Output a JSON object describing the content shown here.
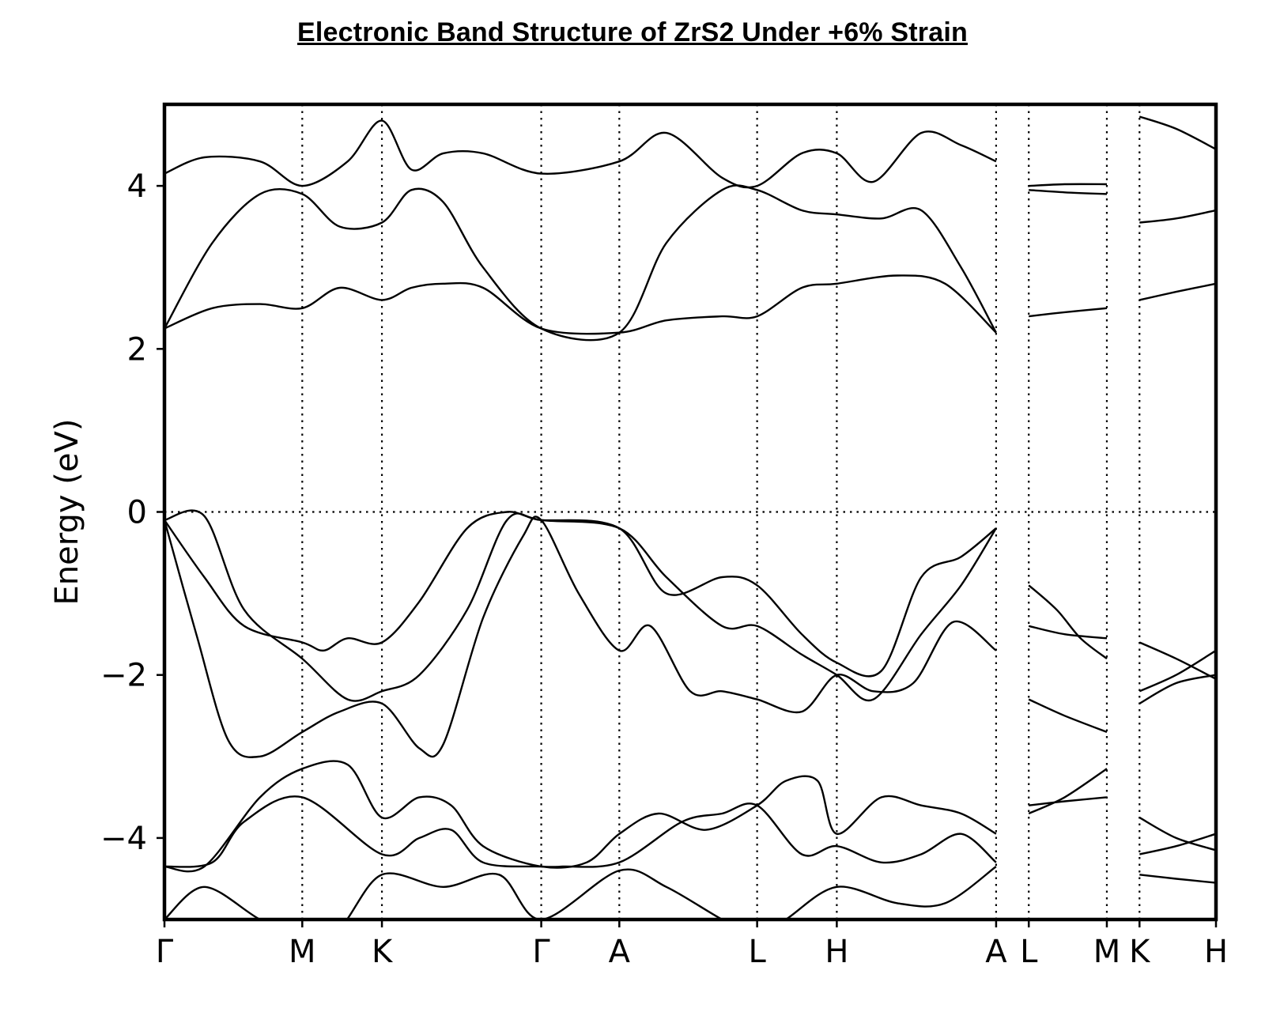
{
  "chart_data": {
    "type": "line",
    "title": "Electronic Band Structure of ZrS2 Under +6% Strain",
    "xlabel": "",
    "ylabel": "Energy (eV)",
    "ylim": [
      -5,
      5
    ],
    "yticks": [
      4,
      2,
      0,
      -2,
      -4
    ],
    "ytick_labels": [
      "4",
      "2",
      "0",
      "−2",
      "−4"
    ],
    "fermi_level": 0,
    "kpath": {
      "labels": [
        "Γ",
        "M",
        "K",
        "Γ",
        "A",
        "L",
        "H",
        "A",
        "L",
        "M",
        "K",
        "H"
      ],
      "positions": [
        0,
        1.73,
        2.73,
        4.73,
        5.71,
        7.44,
        8.44,
        10.44,
        10.85,
        11.83,
        12.24,
        13.2
      ],
      "xlim": [
        0,
        13.2
      ]
    },
    "segments": [
      {
        "name": "Γ-M-K-Γ-A-L-H-A",
        "bands": [
          {
            "x": [
              0,
              0.5,
              1.2,
              1.73,
              2.2,
              2.73,
              3.5,
              4.2,
              4.73,
              5.71,
              6.3,
              7.0,
              7.44,
              7.8,
              8.44,
              9.2,
              9.8,
              10.44
            ],
            "y": [
              -5.0,
              -4.6,
              -5.0,
              -5.2,
              -5.1,
              -4.45,
              -4.6,
              -4.45,
              -5.0,
              -4.4,
              -4.6,
              -5.0,
              -5.2,
              -5.0,
              -4.6,
              -4.8,
              -4.8,
              -4.35
            ]
          },
          {
            "x": [
              0,
              0.6,
              1.0,
              1.73,
              2.73,
              3.2,
              3.6,
              4.0,
              4.73,
              5.0,
              5.71,
              6.5,
              7.0,
              7.44,
              8.0,
              8.44,
              9.0,
              9.5,
              10.0,
              10.44
            ],
            "y": [
              -4.35,
              -4.3,
              -3.8,
              -3.5,
              -4.2,
              -4.0,
              -3.9,
              -4.3,
              -4.35,
              -4.35,
              -4.3,
              -3.8,
              -3.7,
              -3.6,
              -4.2,
              -4.1,
              -4.3,
              -4.2,
              -3.95,
              -4.3
            ]
          },
          {
            "x": [
              0,
              0.5,
              1.2,
              1.73,
              2.3,
              2.73,
              3.2,
              3.6,
              4.0,
              4.73,
              5.3,
              5.71,
              6.2,
              6.8,
              7.44,
              7.8,
              8.2,
              8.44,
              9.0,
              9.5,
              10.0,
              10.44
            ],
            "y": [
              -4.35,
              -4.35,
              -3.5,
              -3.15,
              -3.1,
              -3.75,
              -3.5,
              -3.6,
              -4.1,
              -4.35,
              -4.3,
              -3.95,
              -3.7,
              -3.9,
              -3.6,
              -3.3,
              -3.3,
              -3.95,
              -3.5,
              -3.6,
              -3.7,
              -3.95
            ]
          },
          {
            "x": [
              0,
              0.4,
              0.8,
              1.2,
              1.73,
              2.2,
              2.73,
              3.2,
              3.5,
              4.0,
              4.5,
              4.73,
              5.2,
              5.71,
              6.1,
              6.6,
              7.0,
              7.44,
              8.0,
              8.44,
              8.9,
              9.4,
              9.9,
              10.44
            ],
            "y": [
              -0.1,
              -1.5,
              -2.8,
              -3.0,
              -2.7,
              -2.45,
              -2.35,
              -2.9,
              -2.85,
              -1.3,
              -0.3,
              -0.1,
              -1.0,
              -1.7,
              -1.4,
              -2.2,
              -2.2,
              -2.3,
              -2.45,
              -2.0,
              -2.2,
              -2.1,
              -1.35,
              -1.7
            ]
          },
          {
            "x": [
              0,
              0.5,
              1.0,
              1.73,
              2.3,
              2.73,
              3.2,
              3.8,
              4.3,
              4.73,
              5.71,
              6.3,
              7.0,
              7.44,
              8.0,
              8.44,
              9.0,
              9.5,
              10.0,
              10.44
            ],
            "y": [
              -0.1,
              -0.05,
              -1.2,
              -1.8,
              -2.3,
              -2.2,
              -2.0,
              -1.2,
              -0.1,
              -0.1,
              -0.2,
              -1.0,
              -0.8,
              -0.9,
              -1.5,
              -1.85,
              -1.95,
              -0.8,
              -0.55,
              -0.2
            ]
          },
          {
            "x": [
              0,
              0.5,
              1.0,
              1.73,
              2.0,
              2.3,
              2.73,
              3.2,
              3.8,
              4.3,
              4.73,
              5.71,
              6.3,
              7.0,
              7.44,
              8.0,
              8.44,
              8.9,
              9.5,
              10.0,
              10.44
            ],
            "y": [
              -0.1,
              -0.8,
              -1.4,
              -1.6,
              -1.7,
              -1.55,
              -1.6,
              -1.1,
              -0.2,
              0.0,
              -0.1,
              -0.2,
              -0.8,
              -1.4,
              -1.4,
              -1.75,
              -2.0,
              -2.3,
              -1.5,
              -0.9,
              -0.2
            ]
          },
          {
            "x": [
              0,
              0.6,
              1.2,
              1.73,
              2.2,
              2.73,
              3.1,
              3.5,
              4.0,
              4.73,
              5.71,
              6.3,
              7.0,
              7.44,
              8.0,
              8.44,
              9.2,
              9.8,
              10.44
            ],
            "y": [
              2.25,
              2.5,
              2.55,
              2.5,
              2.75,
              2.6,
              2.75,
              2.8,
              2.75,
              2.25,
              2.2,
              2.35,
              2.4,
              2.4,
              2.75,
              2.8,
              2.9,
              2.8,
              2.2
            ]
          },
          {
            "x": [
              0,
              0.6,
              1.2,
              1.73,
              2.2,
              2.73,
              3.1,
              3.5,
              4.0,
              4.73,
              5.71,
              6.3,
              7.0,
              7.44,
              8.0,
              8.44,
              9.0,
              9.5,
              10.0,
              10.44
            ],
            "y": [
              2.25,
              3.3,
              3.9,
              3.9,
              3.5,
              3.55,
              3.95,
              3.8,
              3.0,
              2.25,
              2.2,
              3.3,
              3.95,
              3.95,
              3.7,
              3.65,
              3.6,
              3.7,
              3.0,
              2.2
            ]
          },
          {
            "x": [
              0,
              0.5,
              1.2,
              1.73,
              2.3,
              2.73,
              3.1,
              3.5,
              4.0,
              4.73,
              5.71,
              6.3,
              7.0,
              7.44,
              8.0,
              8.44,
              8.9,
              9.5,
              10.0,
              10.44
            ],
            "y": [
              4.15,
              4.35,
              4.3,
              4.0,
              4.3,
              4.8,
              4.2,
              4.4,
              4.4,
              4.15,
              4.3,
              4.65,
              4.1,
              4.0,
              4.4,
              4.4,
              4.05,
              4.65,
              4.5,
              4.3
            ]
          }
        ]
      },
      {
        "name": "L-M",
        "bands": [
          {
            "x": [
              10.85,
              11.3,
              11.83
            ],
            "y": [
              -3.7,
              -3.5,
              -3.15
            ]
          },
          {
            "x": [
              10.85,
              11.3,
              11.83
            ],
            "y": [
              -3.6,
              -3.55,
              -3.5
            ]
          },
          {
            "x": [
              10.85,
              11.3,
              11.83
            ],
            "y": [
              -2.3,
              -2.5,
              -2.7
            ]
          },
          {
            "x": [
              10.85,
              11.2,
              11.5,
              11.83
            ],
            "y": [
              -0.9,
              -1.2,
              -1.55,
              -1.8
            ]
          },
          {
            "x": [
              10.85,
              11.3,
              11.83
            ],
            "y": [
              -1.4,
              -1.5,
              -1.55
            ]
          },
          {
            "x": [
              10.85,
              11.3,
              11.83
            ],
            "y": [
              2.4,
              2.45,
              2.5
            ]
          },
          {
            "x": [
              10.85,
              11.3,
              11.83
            ],
            "y": [
              3.95,
              3.92,
              3.9
            ]
          },
          {
            "x": [
              10.85,
              11.3,
              11.83
            ],
            "y": [
              4.0,
              4.02,
              4.02
            ]
          }
        ]
      },
      {
        "name": "K-H",
        "bands": [
          {
            "x": [
              12.24,
              12.7,
              13.2
            ],
            "y": [
              -4.45,
              -4.5,
              -4.55
            ]
          },
          {
            "x": [
              12.24,
              12.7,
              13.2
            ],
            "y": [
              -4.2,
              -4.1,
              -3.95
            ]
          },
          {
            "x": [
              12.24,
              12.7,
              13.2
            ],
            "y": [
              -3.75,
              -4.0,
              -4.15
            ]
          },
          {
            "x": [
              12.24,
              12.7,
              13.2
            ],
            "y": [
              -2.35,
              -2.1,
              -2.0
            ]
          },
          {
            "x": [
              12.24,
              12.7,
              13.2
            ],
            "y": [
              -2.2,
              -2.0,
              -1.7
            ]
          },
          {
            "x": [
              12.24,
              12.7,
              13.2
            ],
            "y": [
              -1.6,
              -1.8,
              -2.05
            ]
          },
          {
            "x": [
              12.24,
              12.7,
              13.2
            ],
            "y": [
              2.6,
              2.7,
              2.8
            ]
          },
          {
            "x": [
              12.24,
              12.7,
              13.2
            ],
            "y": [
              3.55,
              3.6,
              3.7
            ]
          },
          {
            "x": [
              12.24,
              12.7,
              13.2
            ],
            "y": [
              4.85,
              4.7,
              4.45
            ]
          }
        ]
      }
    ],
    "line_color": "#000000",
    "grid": "vertical dotted lines at high-symmetry points; horizontal dotted line at Fermi level"
  }
}
